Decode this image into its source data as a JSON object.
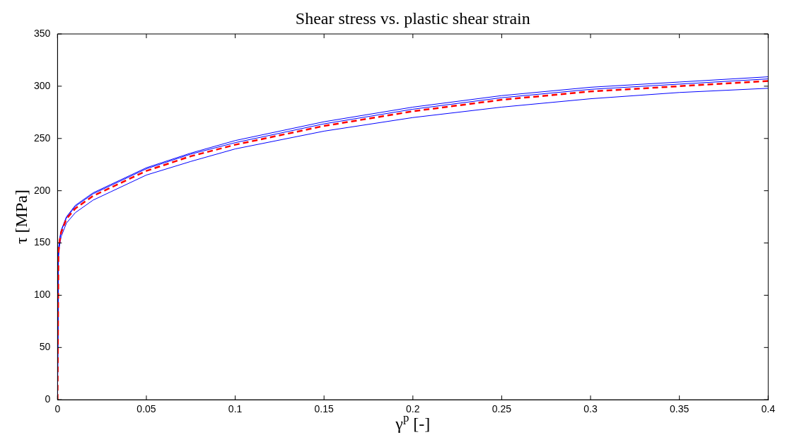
{
  "chart_data": {
    "type": "line",
    "title": "Shear stress vs. plastic shear strain",
    "xlabel": "γ$^{p}$ [-]",
    "ylabel": "τ [MPa]",
    "x": [
      0,
      0.0005,
      0.001,
      0.002,
      0.005,
      0.01,
      0.02,
      0.03,
      0.05,
      0.075,
      0.1,
      0.15,
      0.2,
      0.25,
      0.3,
      0.35,
      0.4
    ],
    "series": [
      {
        "color": "#0000ff",
        "line_style": "solid",
        "values": [
          0,
          142,
          152,
          162,
          175,
          186,
          198,
          206,
          222,
          236,
          248,
          266,
          280,
          291,
          299,
          304,
          309
        ]
      },
      {
        "color": "#0000ff",
        "line_style": "solid",
        "values": [
          0,
          141,
          151,
          161,
          174,
          185,
          197,
          205,
          221,
          235,
          246,
          264,
          278,
          289,
          297,
          302,
          307
        ]
      },
      {
        "color": "#0000ff",
        "line_style": "solid",
        "values": [
          0,
          136,
          146,
          156,
          169,
          179,
          191,
          199,
          215,
          228,
          240,
          257,
          270,
          280,
          288,
          294,
          298
        ]
      },
      {
        "color": "#ff0000",
        "line_style": "dashed",
        "values": [
          0,
          140,
          150,
          160,
          173,
          183,
          195,
          203,
          219,
          233,
          244,
          262,
          276,
          287,
          295,
          300,
          305
        ]
      }
    ],
    "xlim": [
      0,
      0.4
    ],
    "xticks": [
      0,
      0.05,
      0.1,
      0.15,
      0.2,
      0.25,
      0.3,
      0.35,
      0.4
    ],
    "ylim": [
      0,
      350
    ],
    "yticks": [
      0,
      50,
      100,
      150,
      200,
      250,
      300,
      350
    ],
    "grid": false,
    "legend": false,
    "marker": "none"
  }
}
